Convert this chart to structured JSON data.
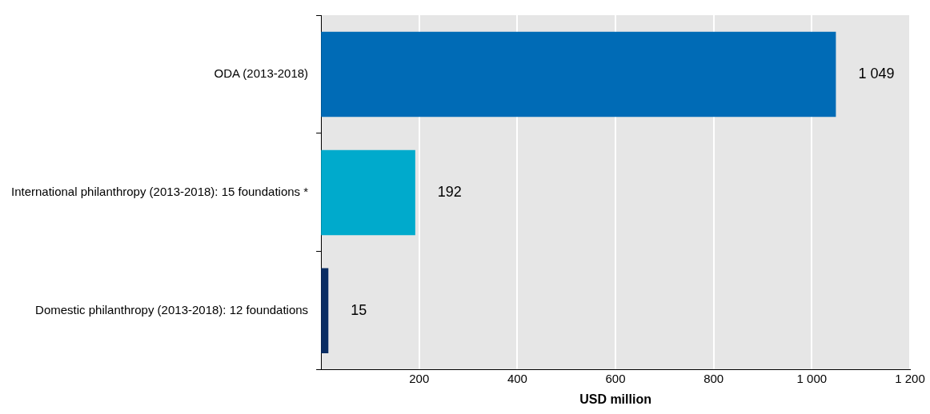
{
  "chart_data": {
    "type": "bar",
    "orientation": "horizontal",
    "categories": [
      "ODA (2013-2018)",
      "International philanthropy (2013-2018): 15 foundations *",
      "Domestic philanthropy (2013-2018): 12 foundations"
    ],
    "values": [
      1049,
      192,
      15
    ],
    "colors": [
      "#006bb6",
      "#00aacc",
      "#0a2d63"
    ],
    "value_labels": [
      "1 049",
      "192",
      "15"
    ],
    "xlabel": "USD million",
    "xlim": [
      0,
      1200
    ],
    "xticks": [
      200,
      400,
      600,
      800,
      {
        "value": 1000,
        "label": "1 000"
      },
      {
        "value": 1200,
        "label": "1 200"
      }
    ],
    "grid": "x",
    "legend": false
  }
}
